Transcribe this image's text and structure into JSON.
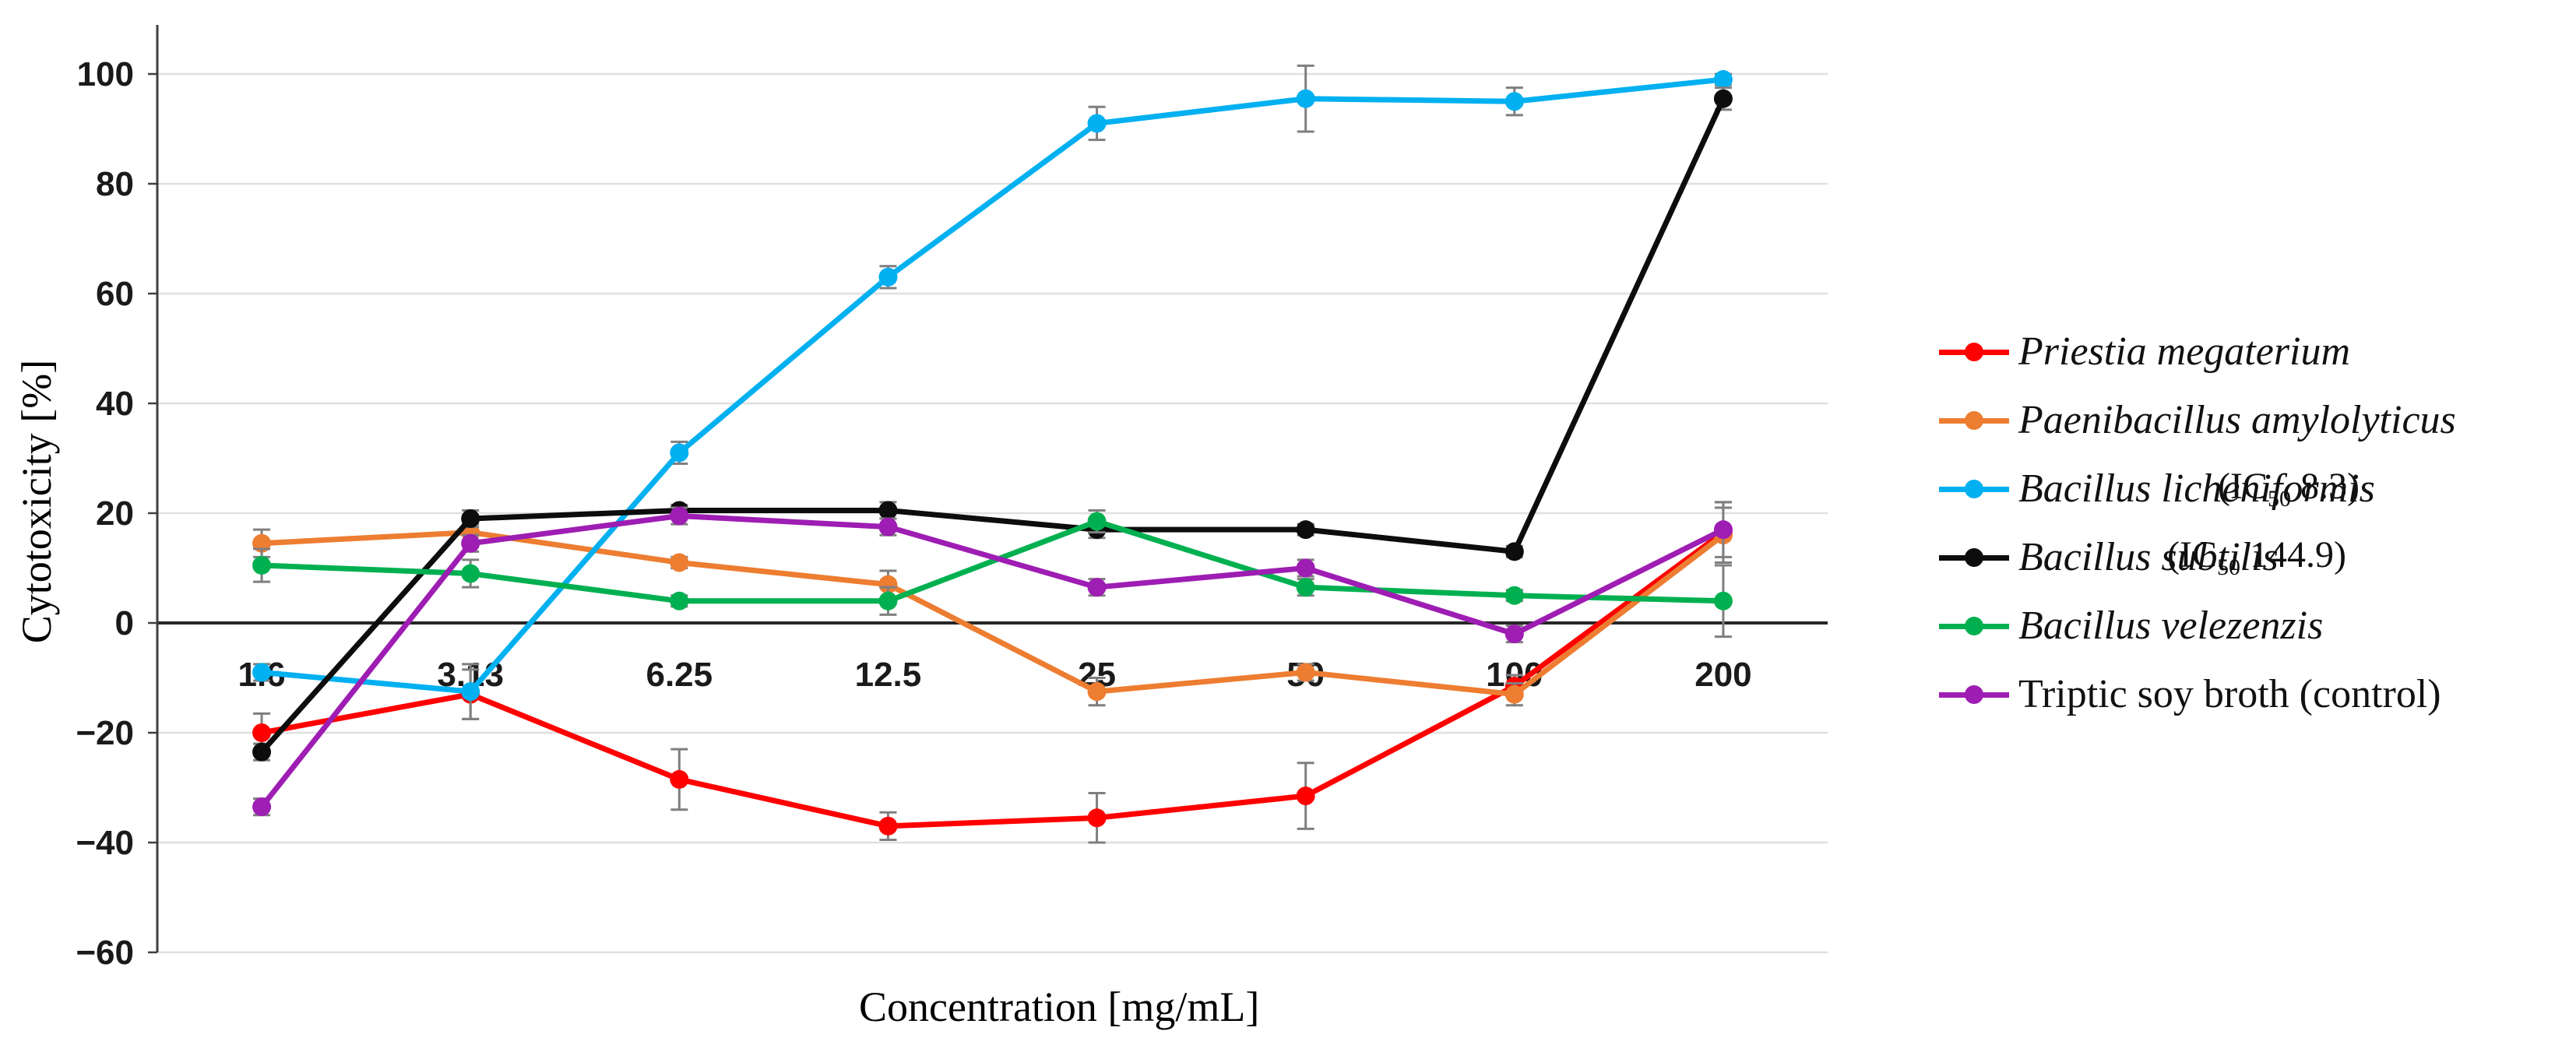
{
  "figure": {
    "background": "#ffffff",
    "y_axis_title": "Cytotoxicity [%]",
    "x_axis_title": "Concentration [mg/mL]"
  },
  "colors": {
    "gridline": "#E0E0E0",
    "zero_line": "#262626",
    "axis_line": "#3F3F3F",
    "error_bar": "#7F7F7F",
    "tick_text": "#1A1A1A"
  },
  "chart_data": {
    "type": "line",
    "title": "",
    "xlabel": "Concentration [mg/mL]",
    "ylabel": "Cytotoxicity [%]",
    "categories": [
      "1.6",
      "3.13",
      "6.25",
      "12.5",
      "25",
      "50",
      "100",
      "200"
    ],
    "ylim": [
      -60,
      110
    ],
    "grid": true,
    "legend_position": "right",
    "y_ticks": [
      {
        "v": 100,
        "label": "100"
      },
      {
        "v": 80,
        "label": "80"
      },
      {
        "v": 60,
        "label": "60"
      },
      {
        "v": 40,
        "label": "40"
      },
      {
        "v": 20,
        "label": "20"
      },
      {
        "v": 0,
        "label": "0"
      },
      {
        "v": -20,
        "label": "−20"
      },
      {
        "v": -40,
        "label": "−40"
      },
      {
        "v": -60,
        "label": "−60"
      }
    ],
    "series": [
      {
        "name": "Priestia megaterium",
        "color": "#FF0000",
        "italic": true,
        "values": [
          -20,
          -13,
          -28.5,
          -37,
          -35.5,
          -31.5,
          -11.5,
          16.5
        ],
        "errors": [
          3.5,
          4.5,
          5.5,
          2.5,
          4.5,
          6,
          2,
          5.5
        ]
      },
      {
        "name": "Paenibacillus amylolyticus",
        "color": "#ED7D31",
        "italic": true,
        "values": [
          14.5,
          16.5,
          11,
          7,
          -12.5,
          -9,
          -13,
          16
        ],
        "errors": [
          2.5,
          1.5,
          1,
          2.5,
          2.5,
          1.5,
          2,
          5
        ]
      },
      {
        "name": "Bacillus licheniformis",
        "color": "#00B0F0",
        "italic": true,
        "ic50_label": {
          "pre": "(IC",
          "sub": "50",
          "post": " 8.3)"
        },
        "values": [
          -9,
          -12.5,
          31,
          63,
          91,
          95.5,
          95,
          99
        ],
        "errors": [
          1.5,
          5,
          2,
          2,
          3,
          6,
          2.5,
          1
        ]
      },
      {
        "name": "Bacillus subtilis",
        "color": "#0D0D0D",
        "italic": true,
        "ic50_label": {
          "pre": "(IC",
          "sub": "50",
          "post": " 144.9)"
        },
        "values": [
          -23.5,
          19,
          20.5,
          20.5,
          17,
          17,
          13,
          95.5
        ],
        "errors": [
          1.5,
          1.5,
          1,
          1.5,
          1.5,
          1,
          1,
          2
        ]
      },
      {
        "name": "Bacillus velezenzis",
        "color": "#00B050",
        "italic": true,
        "values": [
          10.5,
          9,
          4,
          4,
          18.5,
          6.5,
          5,
          4
        ],
        "errors": [
          3,
          2.5,
          1,
          2.5,
          2,
          1.5,
          1,
          6.5
        ]
      },
      {
        "name": "Triptic soy broth (control)",
        "color": "#9E1DB3",
        "italic": false,
        "values": [
          -33.5,
          14.5,
          19.5,
          17.5,
          6.5,
          10,
          -2,
          17
        ],
        "errors": [
          1.5,
          1.5,
          1.5,
          1.5,
          1.5,
          1.5,
          1.5,
          5
        ]
      }
    ]
  }
}
